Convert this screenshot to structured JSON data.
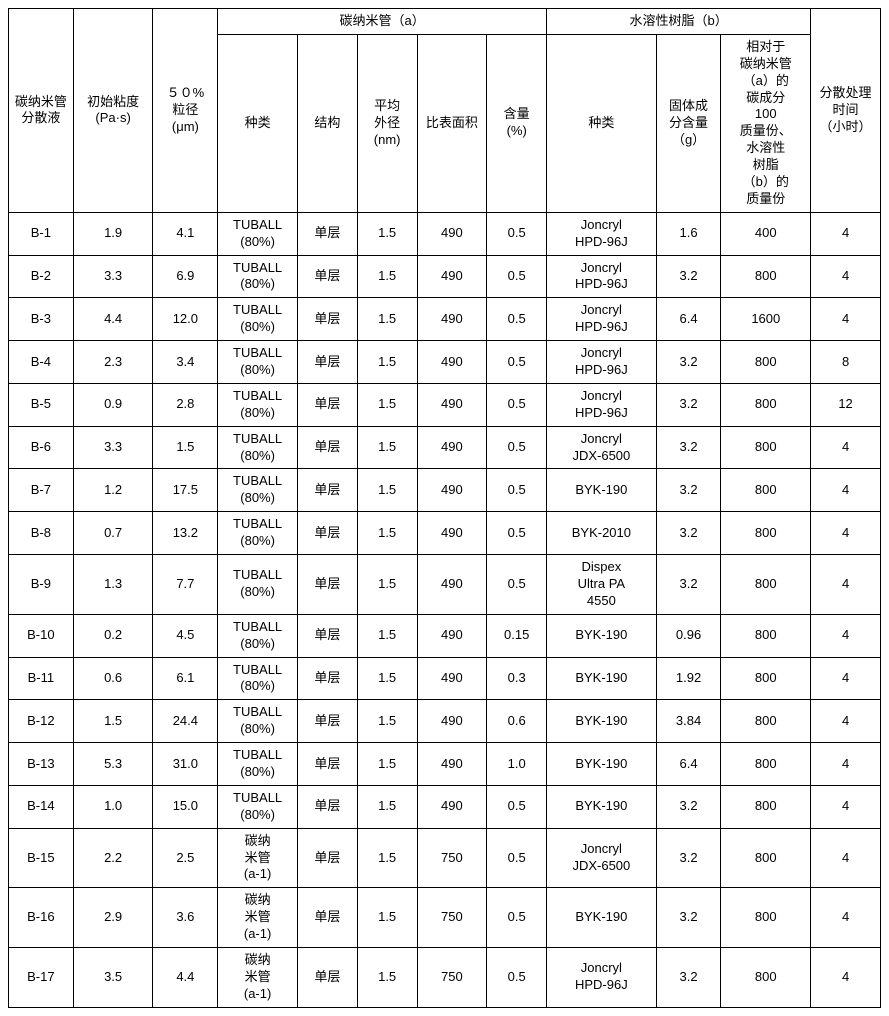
{
  "headers": {
    "col1": "碳纳米管分散液",
    "col2": "初始粘度\n(Pa·s)",
    "col3": "５０%\n粒径\n(μm)",
    "group_a": "碳纳米管（a）",
    "a1": "种类",
    "a2": "结构",
    "a3": "平均\n外径\n(nm)",
    "a4": "比表面积",
    "a5": "含量\n(%)",
    "group_b": "水溶性树脂（b）",
    "b1": "种类",
    "b2": "固体成\n分含量\n（g）",
    "b3": "相对于\n碳纳米管\n（a）的\n碳成分\n100\n质量份、\n水溶性\n树脂\n（b）的\n质量份",
    "col_last": "分散处理\n时间\n（小时）"
  },
  "rows": [
    {
      "id": "B-1",
      "visc": "1.9",
      "d50": "4.1",
      "atype": "TUBALL\n(80%)",
      "struct": "单层",
      "od": "1.5",
      "bet": "490",
      "cont": "0.5",
      "rtype": "Joncryl\nHPD-96J",
      "solid": "1.6",
      "ratio": "400",
      "time": "4"
    },
    {
      "id": "B-2",
      "visc": "3.3",
      "d50": "6.9",
      "atype": "TUBALL\n(80%)",
      "struct": "单层",
      "od": "1.5",
      "bet": "490",
      "cont": "0.5",
      "rtype": "Joncryl\nHPD-96J",
      "solid": "3.2",
      "ratio": "800",
      "time": "4"
    },
    {
      "id": "B-3",
      "visc": "4.4",
      "d50": "12.0",
      "atype": "TUBALL\n(80%)",
      "struct": "单层",
      "od": "1.5",
      "bet": "490",
      "cont": "0.5",
      "rtype": "Joncryl\nHPD-96J",
      "solid": "6.4",
      "ratio": "1600",
      "time": "4"
    },
    {
      "id": "B-4",
      "visc": "2.3",
      "d50": "3.4",
      "atype": "TUBALL\n(80%)",
      "struct": "单层",
      "od": "1.5",
      "bet": "490",
      "cont": "0.5",
      "rtype": "Joncryl\nHPD-96J",
      "solid": "3.2",
      "ratio": "800",
      "time": "8"
    },
    {
      "id": "B-5",
      "visc": "0.9",
      "d50": "2.8",
      "atype": "TUBALL\n(80%)",
      "struct": "单层",
      "od": "1.5",
      "bet": "490",
      "cont": "0.5",
      "rtype": "Joncryl\nHPD-96J",
      "solid": "3.2",
      "ratio": "800",
      "time": "12"
    },
    {
      "id": "B-6",
      "visc": "3.3",
      "d50": "1.5",
      "atype": "TUBALL\n(80%)",
      "struct": "单层",
      "od": "1.5",
      "bet": "490",
      "cont": "0.5",
      "rtype": "Joncryl\nJDX-6500",
      "solid": "3.2",
      "ratio": "800",
      "time": "4"
    },
    {
      "id": "B-7",
      "visc": "1.2",
      "d50": "17.5",
      "atype": "TUBALL\n(80%)",
      "struct": "单层",
      "od": "1.5",
      "bet": "490",
      "cont": "0.5",
      "rtype": "BYK-190",
      "solid": "3.2",
      "ratio": "800",
      "time": "4"
    },
    {
      "id": "B-8",
      "visc": "0.7",
      "d50": "13.2",
      "atype": "TUBALL\n(80%)",
      "struct": "单层",
      "od": "1.5",
      "bet": "490",
      "cont": "0.5",
      "rtype": "BYK-2010",
      "solid": "3.2",
      "ratio": "800",
      "time": "4"
    },
    {
      "id": "B-9",
      "visc": "1.3",
      "d50": "7.7",
      "atype": "TUBALL\n(80%)",
      "struct": "单层",
      "od": "1.5",
      "bet": "490",
      "cont": "0.5",
      "rtype": "Dispex\nUltra PA\n4550",
      "solid": "3.2",
      "ratio": "800",
      "time": "4"
    },
    {
      "id": "B-10",
      "visc": "0.2",
      "d50": "4.5",
      "atype": "TUBALL\n(80%)",
      "struct": "单层",
      "od": "1.5",
      "bet": "490",
      "cont": "0.15",
      "rtype": "BYK-190",
      "solid": "0.96",
      "ratio": "800",
      "time": "4"
    },
    {
      "id": "B-11",
      "visc": "0.6",
      "d50": "6.1",
      "atype": "TUBALL\n(80%)",
      "struct": "单层",
      "od": "1.5",
      "bet": "490",
      "cont": "0.3",
      "rtype": "BYK-190",
      "solid": "1.92",
      "ratio": "800",
      "time": "4"
    },
    {
      "id": "B-12",
      "visc": "1.5",
      "d50": "24.4",
      "atype": "TUBALL\n(80%)",
      "struct": "单层",
      "od": "1.5",
      "bet": "490",
      "cont": "0.6",
      "rtype": "BYK-190",
      "solid": "3.84",
      "ratio": "800",
      "time": "4"
    },
    {
      "id": "B-13",
      "visc": "5.3",
      "d50": "31.0",
      "atype": "TUBALL\n(80%)",
      "struct": "单层",
      "od": "1.5",
      "bet": "490",
      "cont": "1.0",
      "rtype": "BYK-190",
      "solid": "6.4",
      "ratio": "800",
      "time": "4"
    },
    {
      "id": "B-14",
      "visc": "1.0",
      "d50": "15.0",
      "atype": "TUBALL\n(80%)",
      "struct": "单层",
      "od": "1.5",
      "bet": "490",
      "cont": "0.5",
      "rtype": "BYK-190",
      "solid": "3.2",
      "ratio": "800",
      "time": "4"
    },
    {
      "id": "B-15",
      "visc": "2.2",
      "d50": "2.5",
      "atype": "碳纳\n米管\n(a-1)",
      "struct": "单层",
      "od": "1.5",
      "bet": "750",
      "cont": "0.5",
      "rtype": "Joncryl\nJDX-6500",
      "solid": "3.2",
      "ratio": "800",
      "time": "4"
    },
    {
      "id": "B-16",
      "visc": "2.9",
      "d50": "3.6",
      "atype": "碳纳\n米管\n(a-1)",
      "struct": "单层",
      "od": "1.5",
      "bet": "750",
      "cont": "0.5",
      "rtype": "BYK-190",
      "solid": "3.2",
      "ratio": "800",
      "time": "4"
    },
    {
      "id": "B-17",
      "visc": "3.5",
      "d50": "4.4",
      "atype": "碳纳\n米管\n(a-1)",
      "struct": "单层",
      "od": "1.5",
      "bet": "750",
      "cont": "0.5",
      "rtype": "Joncryl\nHPD-96J",
      "solid": "3.2",
      "ratio": "800",
      "time": "4"
    }
  ],
  "style": {
    "type": "table",
    "border_color": "#000000",
    "background_color": "#ffffff",
    "text_color": "#000000",
    "font_size_pt": 10,
    "font_family": "SimSun / Arial",
    "columns_count": 12,
    "header_rows": 2
  }
}
